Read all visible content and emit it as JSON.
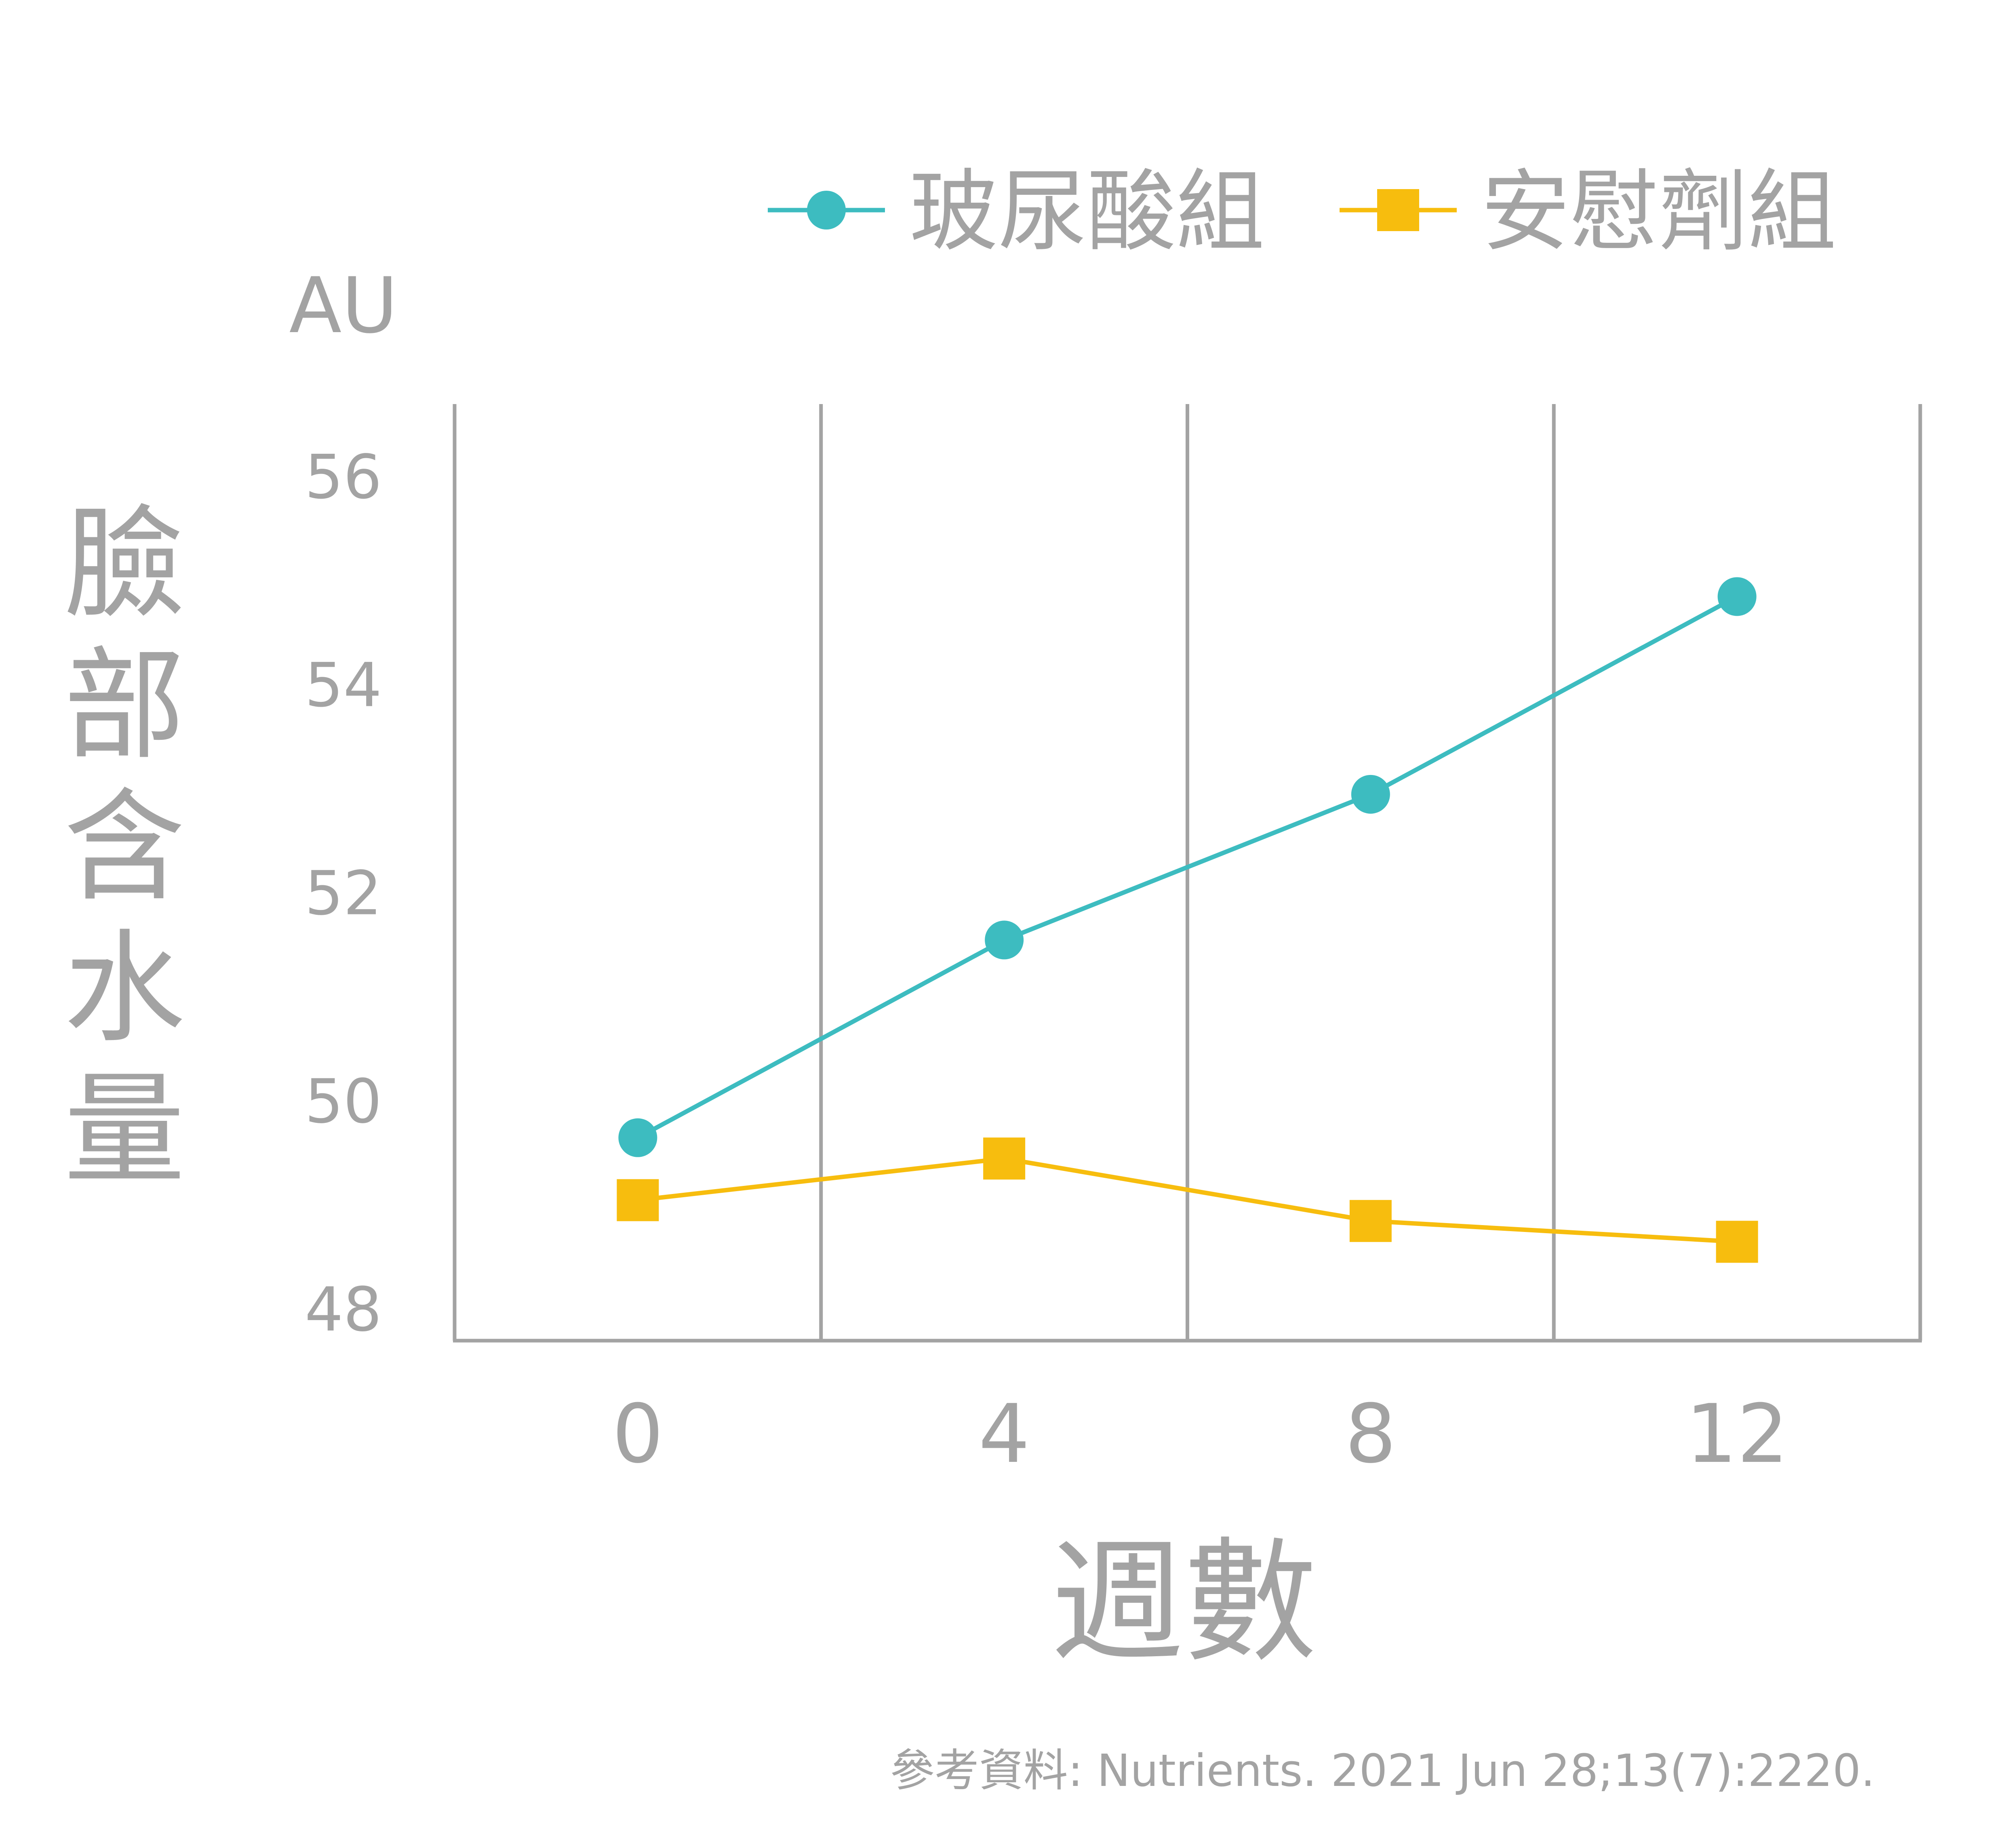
{
  "chart_data": {
    "type": "line",
    "title": "",
    "unit_label": "AU",
    "ylabel": "臉部含水量",
    "xlabel": "週數",
    "x": [
      0,
      4,
      8,
      12
    ],
    "x_tick_labels": [
      "0",
      "4",
      "8",
      "12"
    ],
    "y_tick_labels": [
      "56",
      "54",
      "52",
      "50",
      "48"
    ],
    "ylim": [
      48,
      56
    ],
    "grid": "vertical",
    "legend_position": "top",
    "series": [
      {
        "name": "玻尿酸組",
        "marker": "circle",
        "color": "#3dbcc0",
        "values": [
          49.6,
          51.5,
          52.9,
          54.8
        ]
      },
      {
        "name": "安慰劑組",
        "marker": "square",
        "color": "#f7bd0e",
        "values": [
          49.0,
          49.4,
          48.8,
          48.6
        ]
      }
    ],
    "source": "參考資料: Nutrients. 2021 Jun 28;13(7):2220."
  }
}
